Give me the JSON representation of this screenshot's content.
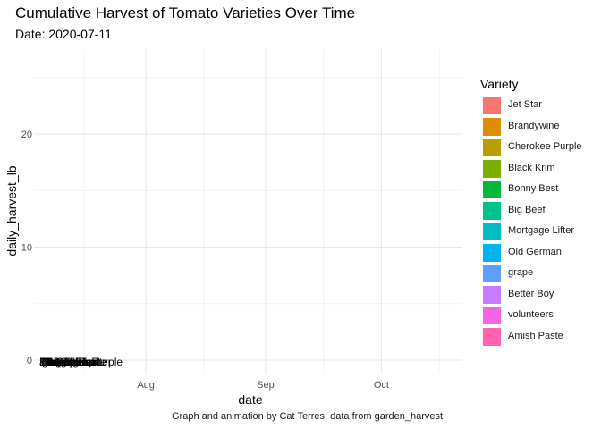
{
  "chart_data": {
    "type": "bar",
    "title": "Cumulative Harvest of Tomato Varieties Over Time",
    "subtitle": "Date: 2020-07-11",
    "caption": "Graph and animation by Cat Terres; data from garden_harvest",
    "xlabel": "date",
    "ylabel": "daily_harvest_lb",
    "orientation": "horizontal",
    "x_ticks": [
      "Aug",
      "Sep",
      "Oct"
    ],
    "xlim": [
      "2020-07-03",
      "2020-10-22"
    ],
    "y_ticks": [
      0,
      10,
      20
    ],
    "ylim": [
      0,
      25
    ],
    "grid": true,
    "legend": {
      "title": "Variety",
      "position": "right",
      "items": [
        {
          "label": "Jet Star",
          "color": "#F8766D"
        },
        {
          "label": "Brandywine",
          "color": "#DE8C00"
        },
        {
          "label": "Cherokee Purple",
          "color": "#B79F00"
        },
        {
          "label": "Black Krim",
          "color": "#7CAE00"
        },
        {
          "label": "Bonny Best",
          "color": "#00BA38"
        },
        {
          "label": "Big Beef",
          "color": "#00C08B"
        },
        {
          "label": "Mortgage Lifter",
          "color": "#00BFC4"
        },
        {
          "label": "Old German",
          "color": "#00B4F0"
        },
        {
          "label": "grape",
          "color": "#619CFF"
        },
        {
          "label": "Better Boy",
          "color": "#C77CFF"
        },
        {
          "label": "volunteers",
          "color": "#F564E3"
        },
        {
          "label": "Amish Paste",
          "color": "#FF64B0"
        }
      ]
    },
    "date_shown": "2020-07-11",
    "series": [
      {
        "variety": "Jet Star",
        "value": 0,
        "date": "2020-07-11"
      },
      {
        "variety": "Brandywine",
        "value": 0,
        "date": "2020-07-11"
      },
      {
        "variety": "Cherokee Purple",
        "value": 0,
        "date": "2020-07-11"
      },
      {
        "variety": "Black Krim",
        "value": 0,
        "date": "2020-07-11"
      },
      {
        "variety": "Bonny Best",
        "value": 0,
        "date": "2020-07-11"
      },
      {
        "variety": "Big Beef",
        "value": 0,
        "date": "2020-07-11"
      },
      {
        "variety": "Mortgage Lifter",
        "value": 0,
        "date": "2020-07-11"
      },
      {
        "variety": "Old German",
        "value": 0,
        "date": "2020-07-11"
      },
      {
        "variety": "grape",
        "value": 0,
        "date": "2020-07-11"
      },
      {
        "variety": "Better Boy",
        "value": 0,
        "date": "2020-07-11"
      },
      {
        "variety": "volunteers",
        "value": 0,
        "date": "2020-07-11"
      },
      {
        "variety": "Amish Paste",
        "value": 0,
        "date": "2020-07-11"
      }
    ]
  }
}
